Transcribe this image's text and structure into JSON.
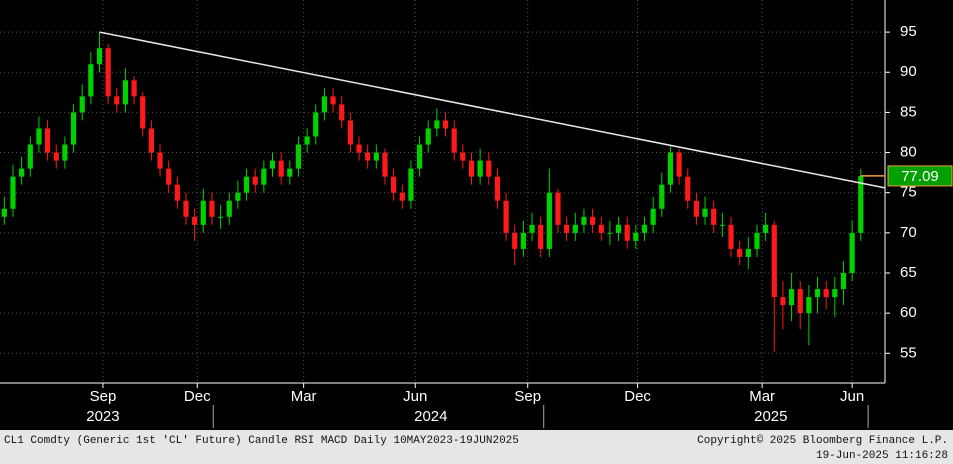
{
  "chart_data": {
    "type": "candlestick",
    "open": [
      72,
      73,
      77,
      78,
      81,
      83,
      80,
      79,
      81,
      85,
      87,
      91,
      93,
      87,
      86,
      89,
      87,
      83,
      80,
      78,
      76,
      74,
      72,
      71,
      74,
      72,
      72,
      74,
      75,
      77,
      76,
      78,
      79,
      77,
      78,
      81,
      82,
      85,
      87,
      86,
      84,
      81,
      80,
      79,
      80,
      77,
      75,
      74,
      78,
      81,
      83,
      84,
      83,
      80,
      79,
      77,
      79,
      77,
      74,
      70,
      68,
      70,
      71,
      68,
      75,
      71,
      70,
      71,
      72,
      71,
      70,
      70,
      71,
      69,
      70,
      71,
      73,
      76,
      80,
      77,
      74,
      72,
      73,
      71,
      71,
      68,
      67,
      68,
      70,
      71,
      62,
      61,
      63,
      60,
      62,
      63,
      62,
      63,
      65,
      70
    ],
    "high": [
      74.5,
      78.5,
      79.5,
      82,
      84.5,
      84,
      81,
      82,
      86,
      88.5,
      92.5,
      95,
      93.5,
      88,
      90.5,
      89.5,
      87.5,
      84,
      81,
      79,
      77,
      75,
      73,
      75.5,
      75,
      73.5,
      75,
      76.5,
      78,
      78,
      79,
      80,
      80,
      79,
      82,
      83,
      86,
      88,
      88,
      87,
      85,
      82,
      81,
      81,
      80.5,
      78,
      76,
      79,
      82,
      84,
      85.5,
      85,
      84,
      81,
      80,
      80.5,
      80,
      78,
      75,
      71,
      71.5,
      72.5,
      72,
      78,
      75.5,
      72,
      72.5,
      73,
      73,
      72,
      71.5,
      72,
      72,
      71,
      72,
      74.5,
      77.5,
      80.8,
      80.5,
      78,
      75,
      74.5,
      74,
      72.5,
      72,
      69,
      69.5,
      71,
      72.5,
      71.5,
      64,
      65,
      64,
      63.5,
      64.5,
      64,
      64.5,
      66.5,
      71.5,
      78
    ],
    "low": [
      71,
      72,
      76,
      77,
      80,
      79,
      78,
      78,
      80,
      84,
      86,
      90,
      86,
      85,
      85,
      86,
      82,
      79,
      77,
      75,
      73,
      71,
      69,
      70,
      71,
      70.5,
      71,
      73,
      74,
      75,
      75,
      77,
      76,
      76,
      77,
      80,
      81,
      84,
      85,
      83,
      80,
      79,
      78,
      78,
      76,
      74,
      73,
      73,
      77,
      80,
      82,
      82,
      79,
      78,
      76,
      76,
      76,
      73,
      69,
      66,
      67,
      69,
      67,
      67,
      70,
      69,
      69,
      70,
      70,
      69,
      68.5,
      69,
      68,
      68,
      69,
      70,
      72,
      75,
      76,
      73,
      71,
      71,
      70,
      69.5,
      67,
      66,
      65.5,
      67,
      69,
      55.2,
      58,
      59,
      58,
      56,
      60,
      60.5,
      59.5,
      61,
      64,
      69
    ],
    "close": [
      73,
      77,
      78,
      81,
      83,
      80,
      79,
      81,
      85,
      87,
      91,
      93,
      87,
      86,
      89,
      87,
      83,
      80,
      78,
      76,
      74,
      72,
      71,
      74,
      72,
      72,
      74,
      75,
      77,
      76,
      78,
      79,
      77,
      78,
      81,
      82,
      85,
      87,
      86,
      84,
      81,
      80,
      79,
      80,
      77,
      75,
      74,
      78,
      81,
      83,
      84,
      83,
      80,
      79,
      77,
      79,
      77,
      74,
      70,
      68,
      70,
      71,
      68,
      75,
      71,
      70,
      71,
      72,
      71,
      70,
      70,
      71,
      69,
      70,
      71,
      73,
      76,
      80,
      77,
      74,
      72,
      73,
      71,
      71,
      68,
      67,
      68,
      70,
      71,
      62,
      61,
      63,
      60,
      62,
      63,
      62,
      63,
      65,
      70,
      77.09
    ],
    "up_color": "#00d200",
    "down_color": "#ff1a1a",
    "xlim": [
      -0.5,
      101.8
    ],
    "xticks": [
      {
        "value": 11.4,
        "label": "Sep"
      },
      {
        "value": 22.3,
        "label": "Dec"
      },
      {
        "value": 34.6,
        "label": "Mar"
      },
      {
        "value": 47.5,
        "label": "Jun"
      },
      {
        "value": 60.5,
        "label": "Sep"
      },
      {
        "value": 73.2,
        "label": "Dec"
      },
      {
        "value": 87.6,
        "label": "Mar"
      },
      {
        "value": 98.0,
        "label": "Jun"
      }
    ],
    "years": [
      {
        "value": 11.4,
        "label": "2023"
      },
      {
        "value": 49.3,
        "label": "2024"
      },
      {
        "value": 88.6,
        "label": "2025"
      }
    ],
    "ylim": [
      51.3,
      99
    ],
    "yticks": [
      55,
      60,
      65,
      70,
      75,
      80,
      85,
      90,
      95
    ],
    "grid": true,
    "trendline": {
      "x": [
        11,
        101.8
      ],
      "y": [
        95,
        75.6
      ],
      "color": "#e8e8e8"
    },
    "last_price_color": "#f0a030",
    "footer_left": "CL1 Comdty (Generic 1st 'CL' Future) Candle RSI MACD  Daily 10MAY2023-19JUN2025",
    "footer_right": "Copyright© 2025 Bloomberg Finance L.P.",
    "timestamp": "19-Jun-2025 11:16:28"
  }
}
